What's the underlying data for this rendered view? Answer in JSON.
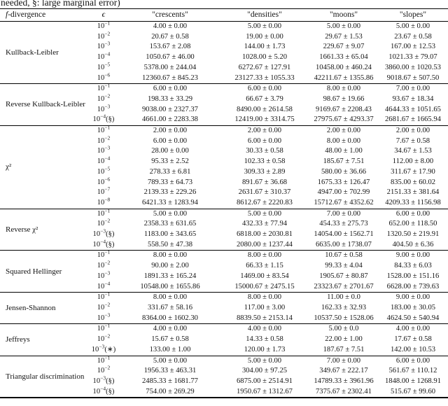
{
  "caption_fragment": "needed, §: large marginal error)",
  "table": {
    "headers": {
      "f_italic": "f",
      "f_rest": "-divergence",
      "epsilon": "ϵ",
      "datasets": [
        "\"crescents\"",
        "\"densities\"",
        "\"moons\"",
        "\"slopes\""
      ]
    },
    "blocks": [
      {
        "label": "Kullback-Leibler",
        "rows": [
          {
            "eps_exp": "−1",
            "mark": "",
            "values": [
              "4.00 ± 0.00",
              "5.00 ± 0.00",
              "5.00 ± 0.00",
              "5.00 ± 0.00"
            ]
          },
          {
            "eps_exp": "−2",
            "mark": "",
            "values": [
              "20.67 ± 0.58",
              "19.00 ± 0.00",
              "29.67 ± 1.53",
              "23.67 ± 0.58"
            ]
          },
          {
            "eps_exp": "−3",
            "mark": "",
            "values": [
              "153.67 ± 2.08",
              "144.00 ± 1.73",
              "229.67 ± 9.07",
              "167.00 ± 12.53"
            ]
          },
          {
            "eps_exp": "−4",
            "mark": "",
            "values": [
              "1050.67 ± 46.00",
              "1028.00 ± 5.20",
              "1661.33 ± 65.04",
              "1021.33 ± 79.07"
            ]
          },
          {
            "eps_exp": "−5",
            "mark": "",
            "values": [
              "5378.00 ± 244.04",
              "6272.67 ± 127.91",
              "10458.00 ± 460.24",
              "3860.00 ± 1020.53"
            ]
          },
          {
            "eps_exp": "−6",
            "mark": "",
            "values": [
              "12360.67 ± 845.23",
              "23127.33 ± 1055.33",
              "42211.67 ± 1355.86",
              "9018.67 ± 507.50"
            ]
          }
        ]
      },
      {
        "label": "Reverse Kullback-Leibler",
        "rows": [
          {
            "eps_exp": "−1",
            "mark": "",
            "values": [
              "6.00 ± 0.00",
              "6.00 ± 0.00",
              "8.00 ± 0.00",
              "7.00 ± 0.00"
            ]
          },
          {
            "eps_exp": "−2",
            "mark": "",
            "values": [
              "198.33 ± 33.29",
              "66.67 ± 3.79",
              "98.67 ± 19.66",
              "93.67 ± 18.34"
            ]
          },
          {
            "eps_exp": "−3",
            "mark": "",
            "values": [
              "9038.00 ± 2327.37",
              "8490.00 ± 2614.58",
              "9169.67 ± 2208.43",
              "4644.33 ± 1051.65"
            ]
          },
          {
            "eps_exp": "−4",
            "mark": "§",
            "values": [
              "4661.00 ± 2283.38",
              "12419.00 ± 3314.75",
              "27975.67 ± 4293.37",
              "2681.67 ± 1665.94"
            ]
          }
        ]
      },
      {
        "label": "χ²",
        "rows": [
          {
            "eps_exp": "−1",
            "mark": "",
            "values": [
              "2.00 ± 0.00",
              "2.00 ± 0.00",
              "2.00 ± 0.00",
              "2.00 ± 0.00"
            ]
          },
          {
            "eps_exp": "−2",
            "mark": "",
            "values": [
              "6.00 ± 0.00",
              "6.00 ± 0.00",
              "8.00 ± 0.00",
              "7.67 ± 0.58"
            ]
          },
          {
            "eps_exp": "−3",
            "mark": "",
            "values": [
              "28.00 ± 0.00",
              "30.33 ± 0.58",
              "48.00 ± 1.00",
              "34.67 ± 1.53"
            ]
          },
          {
            "eps_exp": "−4",
            "mark": "",
            "values": [
              "95.33 ± 2.52",
              "102.33 ± 0.58",
              "185.67 ± 7.51",
              "112.00 ± 8.00"
            ]
          },
          {
            "eps_exp": "−5",
            "mark": "",
            "values": [
              "278.33 ± 6.81",
              "309.33 ± 2.89",
              "580.00 ± 36.66",
              "311.67 ± 17.90"
            ]
          },
          {
            "eps_exp": "−6",
            "mark": "",
            "values": [
              "789.33 ± 64.73",
              "891.67 ± 36.68",
              "1675.33 ± 126.47",
              "835.00 ± 60.02"
            ]
          },
          {
            "eps_exp": "−7",
            "mark": "",
            "values": [
              "2139.33 ± 229.26",
              "2631.67 ± 310.37",
              "4947.00 ± 702.99",
              "2151.33 ± 381.64"
            ]
          },
          {
            "eps_exp": "−8",
            "mark": "",
            "values": [
              "6421.33 ± 1283.94",
              "8612.67 ± 2220.83",
              "15712.67 ± 4352.62",
              "4209.33 ± 1156.98"
            ]
          }
        ]
      },
      {
        "label": "Reverse χ²",
        "rows": [
          {
            "eps_exp": "−1",
            "mark": "",
            "values": [
              "5.00 ± 0.00",
              "5.00 ± 0.00",
              "7.00 ± 0.00",
              "6.00 ± 0.00"
            ]
          },
          {
            "eps_exp": "−2",
            "mark": "",
            "values": [
              "2358.33 ± 631.65",
              "432.33 ± 77.94",
              "454.33 ± 275.73",
              "652.00 ± 118.50"
            ]
          },
          {
            "eps_exp": "−3",
            "mark": "§",
            "values": [
              "1183.00 ± 343.65",
              "6818.00 ± 2030.81",
              "14054.00 ± 1562.71",
              "1320.50 ± 219.91"
            ]
          },
          {
            "eps_exp": "−4",
            "mark": "§",
            "values": [
              "558.50 ± 47.38",
              "2080.00 ± 1237.44",
              "6635.00 ± 1738.07",
              "404.50 ± 6.36"
            ]
          }
        ]
      },
      {
        "label": "Squared Hellinger",
        "rows": [
          {
            "eps_exp": "−1",
            "mark": "",
            "values": [
              "8.00 ± 0.00",
              "8.00 ± 0.00",
              "10.67 ± 0.58",
              "9.00 ± 0.00"
            ]
          },
          {
            "eps_exp": "−2",
            "mark": "",
            "values": [
              "90.00 ± 2.00",
              "66.33 ± 1.15",
              "99.33 ± 4.04",
              "84.33 ± 6.03"
            ]
          },
          {
            "eps_exp": "−3",
            "mark": "",
            "values": [
              "1891.33 ± 165.24",
              "1469.00 ± 83.54",
              "1905.67 ± 80.87",
              "1528.00 ± 151.16"
            ]
          },
          {
            "eps_exp": "−4",
            "mark": "",
            "values": [
              "10548.00 ± 1655.86",
              "15000.67 ± 2475.15",
              "23323.67 ± 2701.67",
              "6628.00 ± 739.63"
            ]
          }
        ]
      },
      {
        "label": "Jensen-Shannon",
        "rows": [
          {
            "eps_exp": "−1",
            "mark": "",
            "values": [
              "8.00 ± 0.00",
              "8.00 ± 0.00",
              "11.00 ± 0.0",
              "9.00 ± 0.00"
            ]
          },
          {
            "eps_exp": "−2",
            "mark": "",
            "values": [
              "331.67 ± 58.16",
              "117.00 ± 3.00",
              "162.33 ± 32.93",
              "183.00 ± 30.05"
            ]
          },
          {
            "eps_exp": "−3",
            "mark": "",
            "values": [
              "8364.00 ± 1602.30",
              "8839.50 ± 2153.14",
              "10537.50 ± 1528.06",
              "4624.50 ± 540.94"
            ]
          }
        ]
      },
      {
        "label": "Jeffreys",
        "rows": [
          {
            "eps_exp": "−1",
            "mark": "",
            "values": [
              "4.00 ± 0.00",
              "4.00 ± 0.00",
              "5.00 ± 0.0",
              "4.00 ± 0.00"
            ]
          },
          {
            "eps_exp": "−2",
            "mark": "",
            "values": [
              "15.67 ± 0.58",
              "14.33 ± 0.58",
              "22.00 ± 1.00",
              "17.67 ± 0.58"
            ]
          },
          {
            "eps_exp": "−3",
            "mark": "∗",
            "values": [
              "133.00 ± 1.00",
              "120.00 ± 1.73",
              "187.67 ± 7.51",
              "142.00 ± 10.53"
            ]
          }
        ]
      },
      {
        "label": "Triangular discrimination",
        "rows": [
          {
            "eps_exp": "−1",
            "mark": "",
            "values": [
              "5.00 ± 0.00",
              "5.00 ± 0.00",
              "7.00 ± 0.00",
              "6.00 ± 0.00"
            ]
          },
          {
            "eps_exp": "−2",
            "mark": "",
            "values": [
              "1956.33 ± 463.31",
              "304.00 ± 97.25",
              "349.67 ± 222.17",
              "561.67 ± 110.12"
            ]
          },
          {
            "eps_exp": "−3",
            "mark": "§",
            "values": [
              "2485.33 ± 1681.77",
              "6875.00 ± 2514.91",
              "14789.33 ± 3961.96",
              "1848.00 ± 1268.91"
            ]
          },
          {
            "eps_exp": "−4",
            "mark": "§",
            "values": [
              "754.00 ± 269.29",
              "1950.67 ± 1312.67",
              "7375.67 ± 2302.41",
              "515.67 ± 99.60"
            ]
          }
        ]
      }
    ]
  }
}
